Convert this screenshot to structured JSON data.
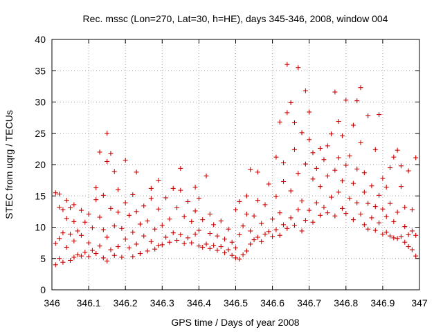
{
  "chart_data": {
    "type": "scatter",
    "title": "Rec. mssc (Lon=270, Lat=30, h=HE), days 345-346, 2008, window 004",
    "xlabel": "GPS time / Days of year 2008",
    "ylabel": "STEC from uqrg / TECUs",
    "xlim": [
      346,
      347
    ],
    "ylim": [
      0,
      40
    ],
    "xticks": [
      "346",
      "346.1",
      "346.2",
      "346.3",
      "346.4",
      "346.5",
      "346.6",
      "346.7",
      "346.8",
      "346.9",
      "347"
    ],
    "yticks": [
      "0",
      "5",
      "10",
      "15",
      "20",
      "25",
      "30",
      "35",
      "40"
    ],
    "grid": true,
    "marker": "+",
    "color": "#cc0000",
    "series": [
      {
        "points": [
          [
            346.01,
            7.4
          ],
          [
            346.01,
            4.0
          ],
          [
            346.01,
            15.5
          ],
          [
            346.02,
            5.0
          ],
          [
            346.02,
            8.2
          ],
          [
            346.02,
            13.2
          ],
          [
            346.02,
            15.3
          ],
          [
            346.03,
            4.4
          ],
          [
            346.03,
            9.1
          ],
          [
            346.03,
            12.8
          ],
          [
            346.04,
            6.8
          ],
          [
            346.04,
            11.4
          ],
          [
            346.04,
            14.3
          ],
          [
            346.05,
            4.7
          ],
          [
            346.05,
            8.9
          ],
          [
            346.05,
            13.1
          ],
          [
            346.06,
            5.2
          ],
          [
            346.06,
            7.8
          ],
          [
            346.06,
            10.9
          ],
          [
            346.06,
            13.6
          ],
          [
            346.07,
            5.6
          ],
          [
            346.07,
            9.4
          ],
          [
            346.08,
            5.4
          ],
          [
            346.08,
            8.7
          ],
          [
            346.08,
            12.7
          ],
          [
            346.09,
            6.0
          ],
          [
            346.09,
            10.8
          ],
          [
            346.1,
            5.3
          ],
          [
            346.1,
            7.5
          ],
          [
            346.1,
            12.1
          ],
          [
            346.11,
            6.3
          ],
          [
            346.11,
            9.9
          ],
          [
            346.12,
            5.8
          ],
          [
            346.12,
            14.4
          ],
          [
            346.12,
            16.3
          ],
          [
            346.13,
            7.0
          ],
          [
            346.13,
            11.6
          ],
          [
            346.13,
            22.0
          ],
          [
            346.14,
            5.1
          ],
          [
            346.14,
            9.6
          ],
          [
            346.14,
            15.1
          ],
          [
            346.15,
            4.6
          ],
          [
            346.15,
            8.4
          ],
          [
            346.15,
            20.5
          ],
          [
            346.15,
            25.0
          ],
          [
            346.16,
            6.4
          ],
          [
            346.16,
            13.0
          ],
          [
            346.16,
            21.8
          ],
          [
            346.17,
            5.5
          ],
          [
            346.17,
            10.2
          ],
          [
            346.17,
            18.9
          ],
          [
            346.18,
            6.9
          ],
          [
            346.18,
            12.4
          ],
          [
            346.18,
            16.0
          ],
          [
            346.19,
            5.2
          ],
          [
            346.19,
            9.8
          ],
          [
            346.2,
            8.1
          ],
          [
            346.2,
            13.9
          ],
          [
            346.2,
            20.7
          ],
          [
            346.21,
            6.7
          ],
          [
            346.21,
            11.9
          ],
          [
            346.22,
            5.3
          ],
          [
            346.22,
            9.2
          ],
          [
            346.22,
            15.2
          ],
          [
            346.23,
            7.3
          ],
          [
            346.23,
            12.5
          ],
          [
            346.23,
            18.8
          ],
          [
            346.24,
            5.8
          ],
          [
            346.24,
            10.5
          ],
          [
            346.25,
            8.6
          ],
          [
            346.25,
            13.4
          ],
          [
            346.26,
            6.2
          ],
          [
            346.26,
            11.0
          ],
          [
            346.27,
            7.7
          ],
          [
            346.27,
            14.6
          ],
          [
            346.27,
            16.2
          ],
          [
            346.28,
            6.5
          ],
          [
            346.28,
            9.7
          ],
          [
            346.29,
            7.1
          ],
          [
            346.29,
            12.9
          ],
          [
            346.29,
            17.5
          ],
          [
            346.3,
            7.2
          ],
          [
            346.3,
            10.3
          ],
          [
            346.31,
            8.4
          ],
          [
            346.31,
            14.7
          ],
          [
            346.32,
            7.6
          ],
          [
            346.32,
            11.3
          ],
          [
            346.33,
            9.1
          ],
          [
            346.33,
            16.2
          ],
          [
            346.34,
            7.9
          ],
          [
            346.34,
            13.1
          ],
          [
            346.35,
            8.8
          ],
          [
            346.35,
            15.9
          ],
          [
            346.35,
            19.4
          ],
          [
            346.36,
            7.4
          ],
          [
            346.36,
            11.7
          ],
          [
            346.37,
            8.3
          ],
          [
            346.37,
            14.1
          ],
          [
            346.38,
            7.5
          ],
          [
            346.38,
            10.9
          ],
          [
            346.39,
            8.9
          ],
          [
            346.39,
            12.6
          ],
          [
            346.39,
            16.4
          ],
          [
            346.4,
            7.0
          ],
          [
            346.4,
            9.5
          ],
          [
            346.4,
            14.6
          ],
          [
            346.41,
            6.8
          ],
          [
            346.41,
            11.2
          ],
          [
            346.42,
            7.3
          ],
          [
            346.42,
            18.2
          ],
          [
            346.43,
            6.6
          ],
          [
            346.43,
            9.0
          ],
          [
            346.43,
            12.1
          ],
          [
            346.44,
            7.1
          ],
          [
            346.44,
            10.4
          ],
          [
            346.45,
            6.3
          ],
          [
            346.45,
            8.6
          ],
          [
            346.46,
            6.9
          ],
          [
            346.46,
            11.0
          ],
          [
            346.47,
            5.9
          ],
          [
            346.47,
            8.1
          ],
          [
            346.48,
            6.4
          ],
          [
            346.48,
            9.7
          ],
          [
            346.49,
            5.5
          ],
          [
            346.49,
            7.6
          ],
          [
            346.5,
            5.1
          ],
          [
            346.5,
            6.7
          ],
          [
            346.5,
            12.8
          ],
          [
            346.51,
            4.9
          ],
          [
            346.51,
            8.8
          ],
          [
            346.51,
            14.1
          ],
          [
            346.52,
            5.6
          ],
          [
            346.52,
            10.2
          ],
          [
            346.53,
            6.2
          ],
          [
            346.53,
            12.1
          ],
          [
            346.53,
            15.0
          ],
          [
            346.54,
            7.3
          ],
          [
            346.54,
            9.4
          ],
          [
            346.54,
            19.2
          ],
          [
            346.55,
            8.0
          ],
          [
            346.55,
            11.8
          ],
          [
            346.56,
            8.4
          ],
          [
            346.56,
            14.3
          ],
          [
            346.56,
            18.8
          ],
          [
            346.57,
            7.7
          ],
          [
            346.57,
            10.6
          ],
          [
            346.58,
            8.9
          ],
          [
            346.58,
            13.6
          ],
          [
            346.59,
            9.3
          ],
          [
            346.59,
            16.9
          ],
          [
            346.6,
            8.5
          ],
          [
            346.6,
            11.3
          ],
          [
            346.61,
            9.6
          ],
          [
            346.61,
            14.9
          ],
          [
            346.61,
            21.2
          ],
          [
            346.62,
            8.7
          ],
          [
            346.62,
            12.3
          ],
          [
            346.62,
            26.8
          ],
          [
            346.63,
            10.4
          ],
          [
            346.63,
            17.3
          ],
          [
            346.63,
            20.3
          ],
          [
            346.64,
            9.8
          ],
          [
            346.64,
            28.3
          ],
          [
            346.64,
            36.0
          ],
          [
            346.65,
            11.5
          ],
          [
            346.65,
            15.8
          ],
          [
            346.65,
            29.9
          ],
          [
            346.66,
            10.3
          ],
          [
            346.66,
            22.4
          ],
          [
            346.66,
            26.7
          ],
          [
            346.67,
            12.8
          ],
          [
            346.67,
            18.6
          ],
          [
            346.67,
            35.5
          ],
          [
            346.68,
            9.4
          ],
          [
            346.68,
            14.2
          ],
          [
            346.68,
            25.1
          ],
          [
            346.69,
            11.1
          ],
          [
            346.69,
            20.1
          ],
          [
            346.69,
            31.8
          ],
          [
            346.7,
            12.7
          ],
          [
            346.7,
            24.0
          ],
          [
            346.7,
            28.4
          ],
          [
            346.71,
            10.8
          ],
          [
            346.71,
            17.7
          ],
          [
            346.71,
            21.9
          ],
          [
            346.72,
            13.9
          ],
          [
            346.72,
            19.4
          ],
          [
            346.73,
            11.9
          ],
          [
            346.73,
            16.5
          ],
          [
            346.73,
            22.6
          ],
          [
            346.74,
            13.2
          ],
          [
            346.74,
            20.8
          ],
          [
            346.75,
            12.3
          ],
          [
            346.75,
            18.2
          ],
          [
            346.75,
            23.0
          ],
          [
            346.76,
            14.8
          ],
          [
            346.76,
            24.9
          ],
          [
            346.77,
            11.8
          ],
          [
            346.77,
            19.1
          ],
          [
            346.77,
            31.6
          ],
          [
            346.78,
            15.6
          ],
          [
            346.78,
            21.1
          ],
          [
            346.78,
            26.9
          ],
          [
            346.79,
            13.0
          ],
          [
            346.79,
            17.4
          ],
          [
            346.79,
            24.6
          ],
          [
            346.8,
            12.2
          ],
          [
            346.8,
            19.9
          ],
          [
            346.8,
            30.3
          ],
          [
            346.81,
            14.6
          ],
          [
            346.81,
            21.4
          ],
          [
            346.82,
            11.2
          ],
          [
            346.82,
            17.0
          ],
          [
            346.82,
            26.3
          ],
          [
            346.83,
            13.9
          ],
          [
            346.83,
            19.3
          ],
          [
            346.83,
            30.2
          ],
          [
            346.84,
            12.1
          ],
          [
            346.84,
            23.5
          ],
          [
            346.84,
            32.3
          ],
          [
            346.85,
            10.4
          ],
          [
            346.85,
            15.6
          ],
          [
            346.85,
            18.7
          ],
          [
            346.86,
            9.7
          ],
          [
            346.86,
            13.8
          ],
          [
            346.86,
            27.8
          ],
          [
            346.87,
            11.5
          ],
          [
            346.87,
            16.6
          ],
          [
            346.88,
            9.5
          ],
          [
            346.88,
            13.3
          ],
          [
            346.88,
            22.4
          ],
          [
            346.89,
            10.7
          ],
          [
            346.89,
            15.1
          ],
          [
            346.89,
            28.0
          ],
          [
            346.9,
            8.9
          ],
          [
            346.9,
            12.9
          ],
          [
            346.9,
            17.8
          ],
          [
            346.91,
            9.2
          ],
          [
            346.91,
            11.7
          ],
          [
            346.91,
            16.4
          ],
          [
            346.92,
            8.6
          ],
          [
            346.92,
            13.8
          ],
          [
            346.92,
            19.5
          ],
          [
            346.93,
            8.3
          ],
          [
            346.93,
            10.9
          ],
          [
            346.93,
            21.2
          ],
          [
            346.94,
            8.2
          ],
          [
            346.94,
            12.4
          ],
          [
            346.94,
            22.3
          ],
          [
            346.95,
            8.5
          ],
          [
            346.95,
            16.5
          ],
          [
            346.95,
            19.8
          ],
          [
            346.96,
            7.6
          ],
          [
            346.96,
            10.1
          ],
          [
            346.96,
            13.2
          ],
          [
            346.97,
            6.9
          ],
          [
            346.97,
            8.8
          ],
          [
            346.97,
            19.0
          ],
          [
            346.98,
            6.4
          ],
          [
            346.98,
            9.4
          ],
          [
            346.98,
            12.8
          ],
          [
            346.99,
            5.4
          ],
          [
            346.99,
            8.7
          ],
          [
            346.99,
            21.1
          ]
        ]
      }
    ]
  }
}
